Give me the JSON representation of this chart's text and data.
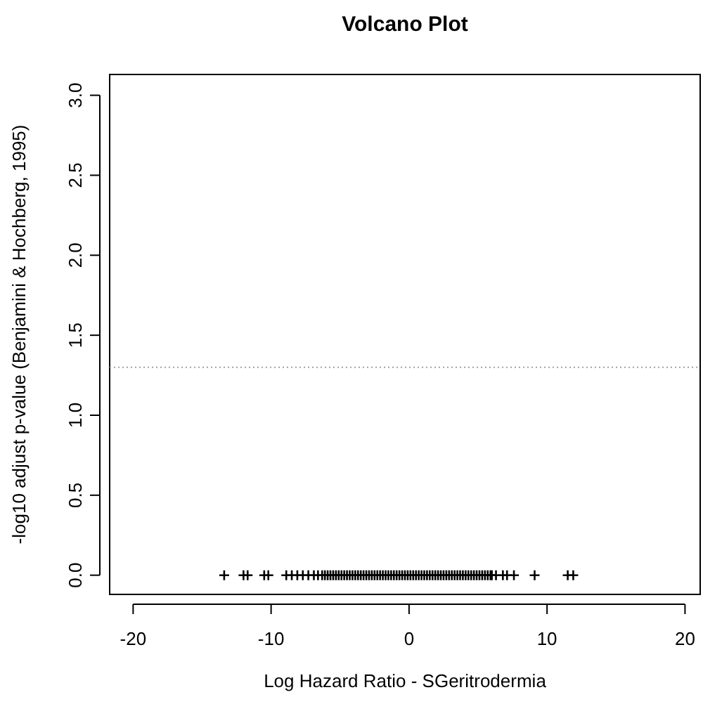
{
  "chart_data": {
    "type": "scatter",
    "title": "Volcano Plot",
    "xlabel": "Log Hazard Ratio - SGeritrodermia",
    "ylabel": "-log10 adjust p-value (Benjamini & Hochberg, 1995)",
    "x": [
      -13.4,
      -12.0,
      -11.7,
      -10.5,
      -10.2,
      -8.9,
      -8.5,
      -8.1,
      -7.7,
      -7.3,
      -6.9,
      -6.6,
      -6.3,
      -6.1,
      -5.9,
      -5.7,
      -5.5,
      -5.3,
      -5.1,
      -4.9,
      -4.7,
      -4.5,
      -4.3,
      -4.1,
      -3.9,
      -3.7,
      -3.5,
      -3.3,
      -3.1,
      -2.9,
      -2.7,
      -2.5,
      -2.3,
      -2.1,
      -1.9,
      -1.7,
      -1.5,
      -1.3,
      -1.1,
      -0.9,
      -0.7,
      -0.5,
      -0.3,
      -0.1,
      0.1,
      0.3,
      0.5,
      0.7,
      0.9,
      1.1,
      1.3,
      1.5,
      1.7,
      1.9,
      2.1,
      2.3,
      2.5,
      2.7,
      2.9,
      3.1,
      3.3,
      3.5,
      3.7,
      3.9,
      4.1,
      4.3,
      4.5,
      4.7,
      4.9,
      5.1,
      5.3,
      5.5,
      5.7,
      5.9,
      6.0,
      6.3,
      6.8,
      7.1,
      7.6,
      9.1,
      11.5,
      11.9
    ],
    "series": [
      {
        "color": "#000000",
        "values": [
          0,
          0,
          0,
          0,
          0,
          0,
          0,
          0,
          0,
          0,
          0,
          0,
          0,
          0,
          0,
          0,
          0,
          0,
          0,
          0,
          0,
          0,
          0,
          0,
          0,
          0,
          0,
          0,
          0,
          0,
          0,
          0,
          0,
          0,
          0,
          0,
          0,
          0,
          0,
          0,
          0,
          0,
          0,
          0,
          0,
          0,
          0,
          0,
          0,
          0,
          0,
          0,
          0,
          0,
          0,
          0,
          0,
          0,
          0,
          0,
          0,
          0,
          0,
          0,
          0,
          0,
          0,
          0,
          0,
          0,
          0,
          0,
          0,
          0,
          0,
          0,
          0,
          0,
          0,
          0,
          0,
          0
        ]
      }
    ],
    "marker": "cross",
    "xlim": [
      -21.7,
      21.1
    ],
    "ylim": [
      -0.12,
      3.13
    ],
    "xticks": [
      -20,
      -10,
      0,
      10,
      20
    ],
    "yticks": [
      {
        "value": 0,
        "label": "0.0"
      },
      {
        "value": 0.5,
        "label": "0.5"
      },
      {
        "value": 1,
        "label": "1.0"
      },
      1.5,
      {
        "value": 2,
        "label": "2.0"
      },
      2.5,
      {
        "value": 3,
        "label": "3.0"
      }
    ],
    "ref_lines": [
      {
        "axis": "y",
        "value": 1.3,
        "color": "#a0a0a0",
        "line_style": "dotted"
      }
    ],
    "grid": false
  }
}
